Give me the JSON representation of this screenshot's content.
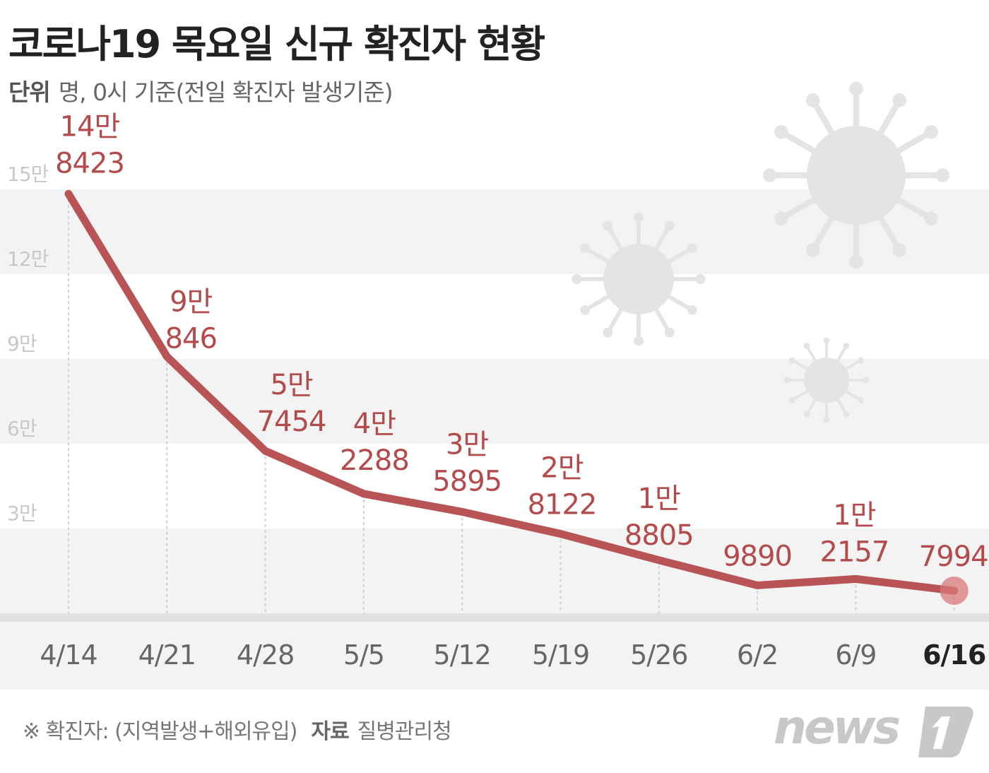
{
  "title": "코로나19 목요일 신규 확진자 현황",
  "unit": {
    "label": "단위",
    "text": "명, 0시 기준(전일 확진자 발생기준)"
  },
  "footer": {
    "note": "※ 확진자: (지역발생+해외유입)",
    "source_label": "자료",
    "source": "질병관리청"
  },
  "logo": "news1",
  "colors": {
    "line": "#b85455",
    "label": "#b34a4c",
    "band": "#f3f3f3",
    "axis_text": "#666666",
    "last_axis_text": "#222222",
    "virus": "#e4e4e4"
  },
  "chart_data": {
    "type": "line",
    "title": "코로나19 목요일 신규 확진자 현황",
    "xlabel": "",
    "ylabel": "",
    "categories": [
      "4/14",
      "4/21",
      "4/28",
      "5/5",
      "5/12",
      "5/19",
      "5/26",
      "6/2",
      "6/9",
      "6/16"
    ],
    "values": [
      148423,
      90846,
      57454,
      42288,
      35895,
      28122,
      18805,
      9890,
      12157,
      7994
    ],
    "data_labels": [
      [
        "14만",
        "8423"
      ],
      [
        "9만",
        "846"
      ],
      [
        "5만",
        "7454"
      ],
      [
        "4만",
        "2288"
      ],
      [
        "3만",
        "5895"
      ],
      [
        "2만",
        "8122"
      ],
      [
        "1만",
        "8805"
      ],
      [
        "9890"
      ],
      [
        "1만",
        "2157"
      ],
      [
        "7994"
      ]
    ],
    "yticks": [
      {
        "value": 30000,
        "label": "3만"
      },
      {
        "value": 60000,
        "label": "6만"
      },
      {
        "value": 90000,
        "label": "9만"
      },
      {
        "value": 120000,
        "label": "12만"
      },
      {
        "value": 150000,
        "label": "15만"
      }
    ],
    "ylim": [
      0,
      150000
    ],
    "grid": "alternating horizontal bands",
    "highlight": "6/16"
  }
}
